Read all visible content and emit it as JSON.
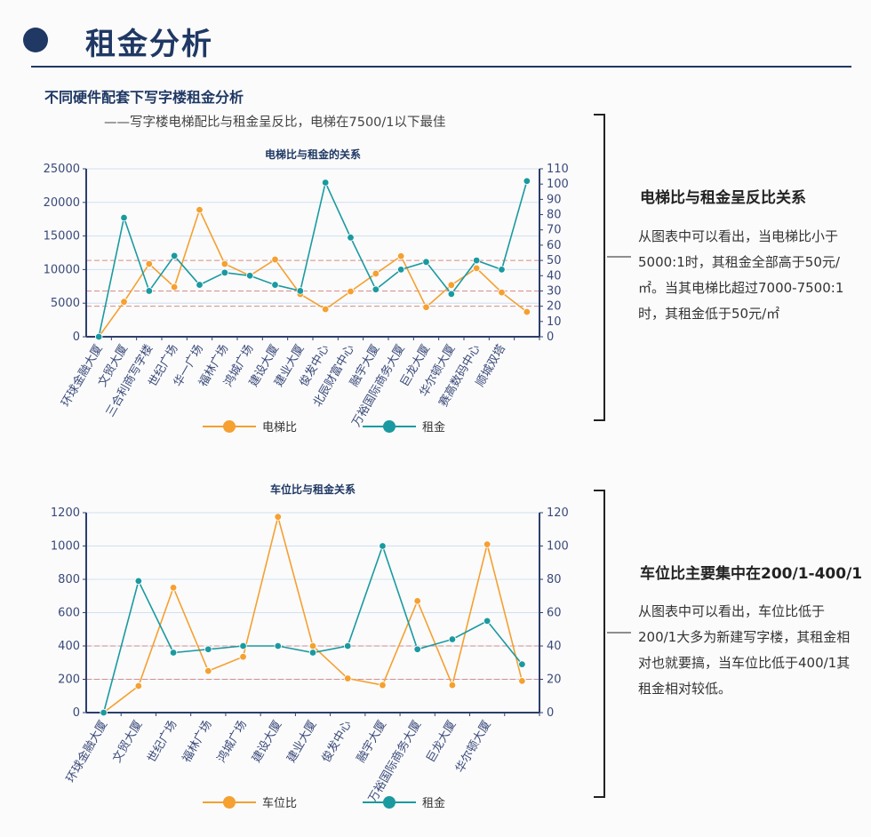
{
  "header": {
    "title": "租金分析"
  },
  "section": {
    "title": "不同硬件配套下写字楼租金分析",
    "subtitle": "——写字楼电梯配比与租金呈反比，电梯在7500/1以下最佳"
  },
  "notes": [
    {
      "title": "电梯比与租金呈反比关系",
      "text": "从图表中可以看出，当电梯比小于5000:1时，其租金全部高于50元/㎡。当其电梯比超过7000-7500:1时，其租金低于50元/㎡"
    },
    {
      "title": "车位比主要集中在200/1-400/1",
      "text": "从图表中可以看出，车位比低于200/1大多为新建写字楼，其租金相对也就要搞，当车位比低于400/1其租金相对较低。"
    }
  ],
  "chart_data": [
    {
      "type": "line",
      "title": "电梯比与租金的关系",
      "categories": [
        "环球金融大厦",
        "文贸大厦",
        "三合利商写字楼",
        "世纪广场",
        "华一广场",
        "福林广场",
        "鸿城广场",
        "建设大厦",
        "建业大厦",
        "俊发中心",
        "北辰财富中心",
        "融宇大厦",
        "万裕国际商务大厦",
        "巨龙大厦",
        "华尔顿大厦",
        "赛高数码中心",
        "顺城双塔",
        null
      ],
      "series": [
        {
          "name": "电梯比",
          "color": "#f5a030",
          "values": [
            0,
            5200,
            10850,
            7400,
            18900,
            10850,
            9100,
            11500,
            6350,
            4100,
            6750,
            9400,
            12000,
            4400,
            7700,
            10200,
            6600,
            3700
          ]
        },
        {
          "name": "租金",
          "color": "#1a9aa0",
          "axis": "y2",
          "values": [
            0,
            78,
            30,
            53,
            34,
            42,
            40,
            34,
            30,
            101,
            65,
            31,
            44,
            49,
            28,
            50,
            44,
            102
          ]
        }
      ],
      "ylim": [
        0,
        25000
      ],
      "yticks": [
        0,
        5000,
        10000,
        15000,
        20000,
        25000
      ],
      "y2lim": [
        0,
        110
      ],
      "y2ticks": [
        0,
        10,
        20,
        30,
        40,
        50,
        60,
        70,
        80,
        90,
        100,
        110
      ],
      "y2_reference_lines": [
        50,
        30,
        20
      ],
      "reference_line_color": "#d98a8a",
      "grid": true
    },
    {
      "type": "line",
      "title": "车位比与租金关系",
      "categories": [
        "环球金融大厦",
        "文贸大厦",
        "世纪广场",
        "福林广场",
        "鸿城广场",
        "建设大厦",
        "建业大厦",
        "俊发中心",
        "融宇大厦",
        "万裕国际商务大厦",
        "巨龙大厦",
        "华尔顿大厦",
        null
      ],
      "series": [
        {
          "name": "车位比",
          "color": "#f5a030",
          "values": [
            0,
            160,
            750,
            250,
            335,
            1175,
            400,
            205,
            165,
            670,
            165,
            1010,
            190
          ]
        },
        {
          "name": "租金",
          "color": "#1a9aa0",
          "axis": "y2",
          "values": [
            0,
            79,
            36,
            38,
            40,
            40,
            36,
            40,
            100,
            38,
            44,
            55,
            29
          ]
        }
      ],
      "ylim": [
        0,
        1200
      ],
      "yticks": [
        0,
        200,
        400,
        600,
        800,
        1000,
        1200
      ],
      "y2lim": [
        0,
        120
      ],
      "y2ticks": [
        0,
        20,
        40,
        60,
        80,
        100,
        120
      ],
      "y2_reference_lines": [
        40,
        20
      ],
      "reference_line_color": "#d98a8a",
      "grid": true
    }
  ]
}
